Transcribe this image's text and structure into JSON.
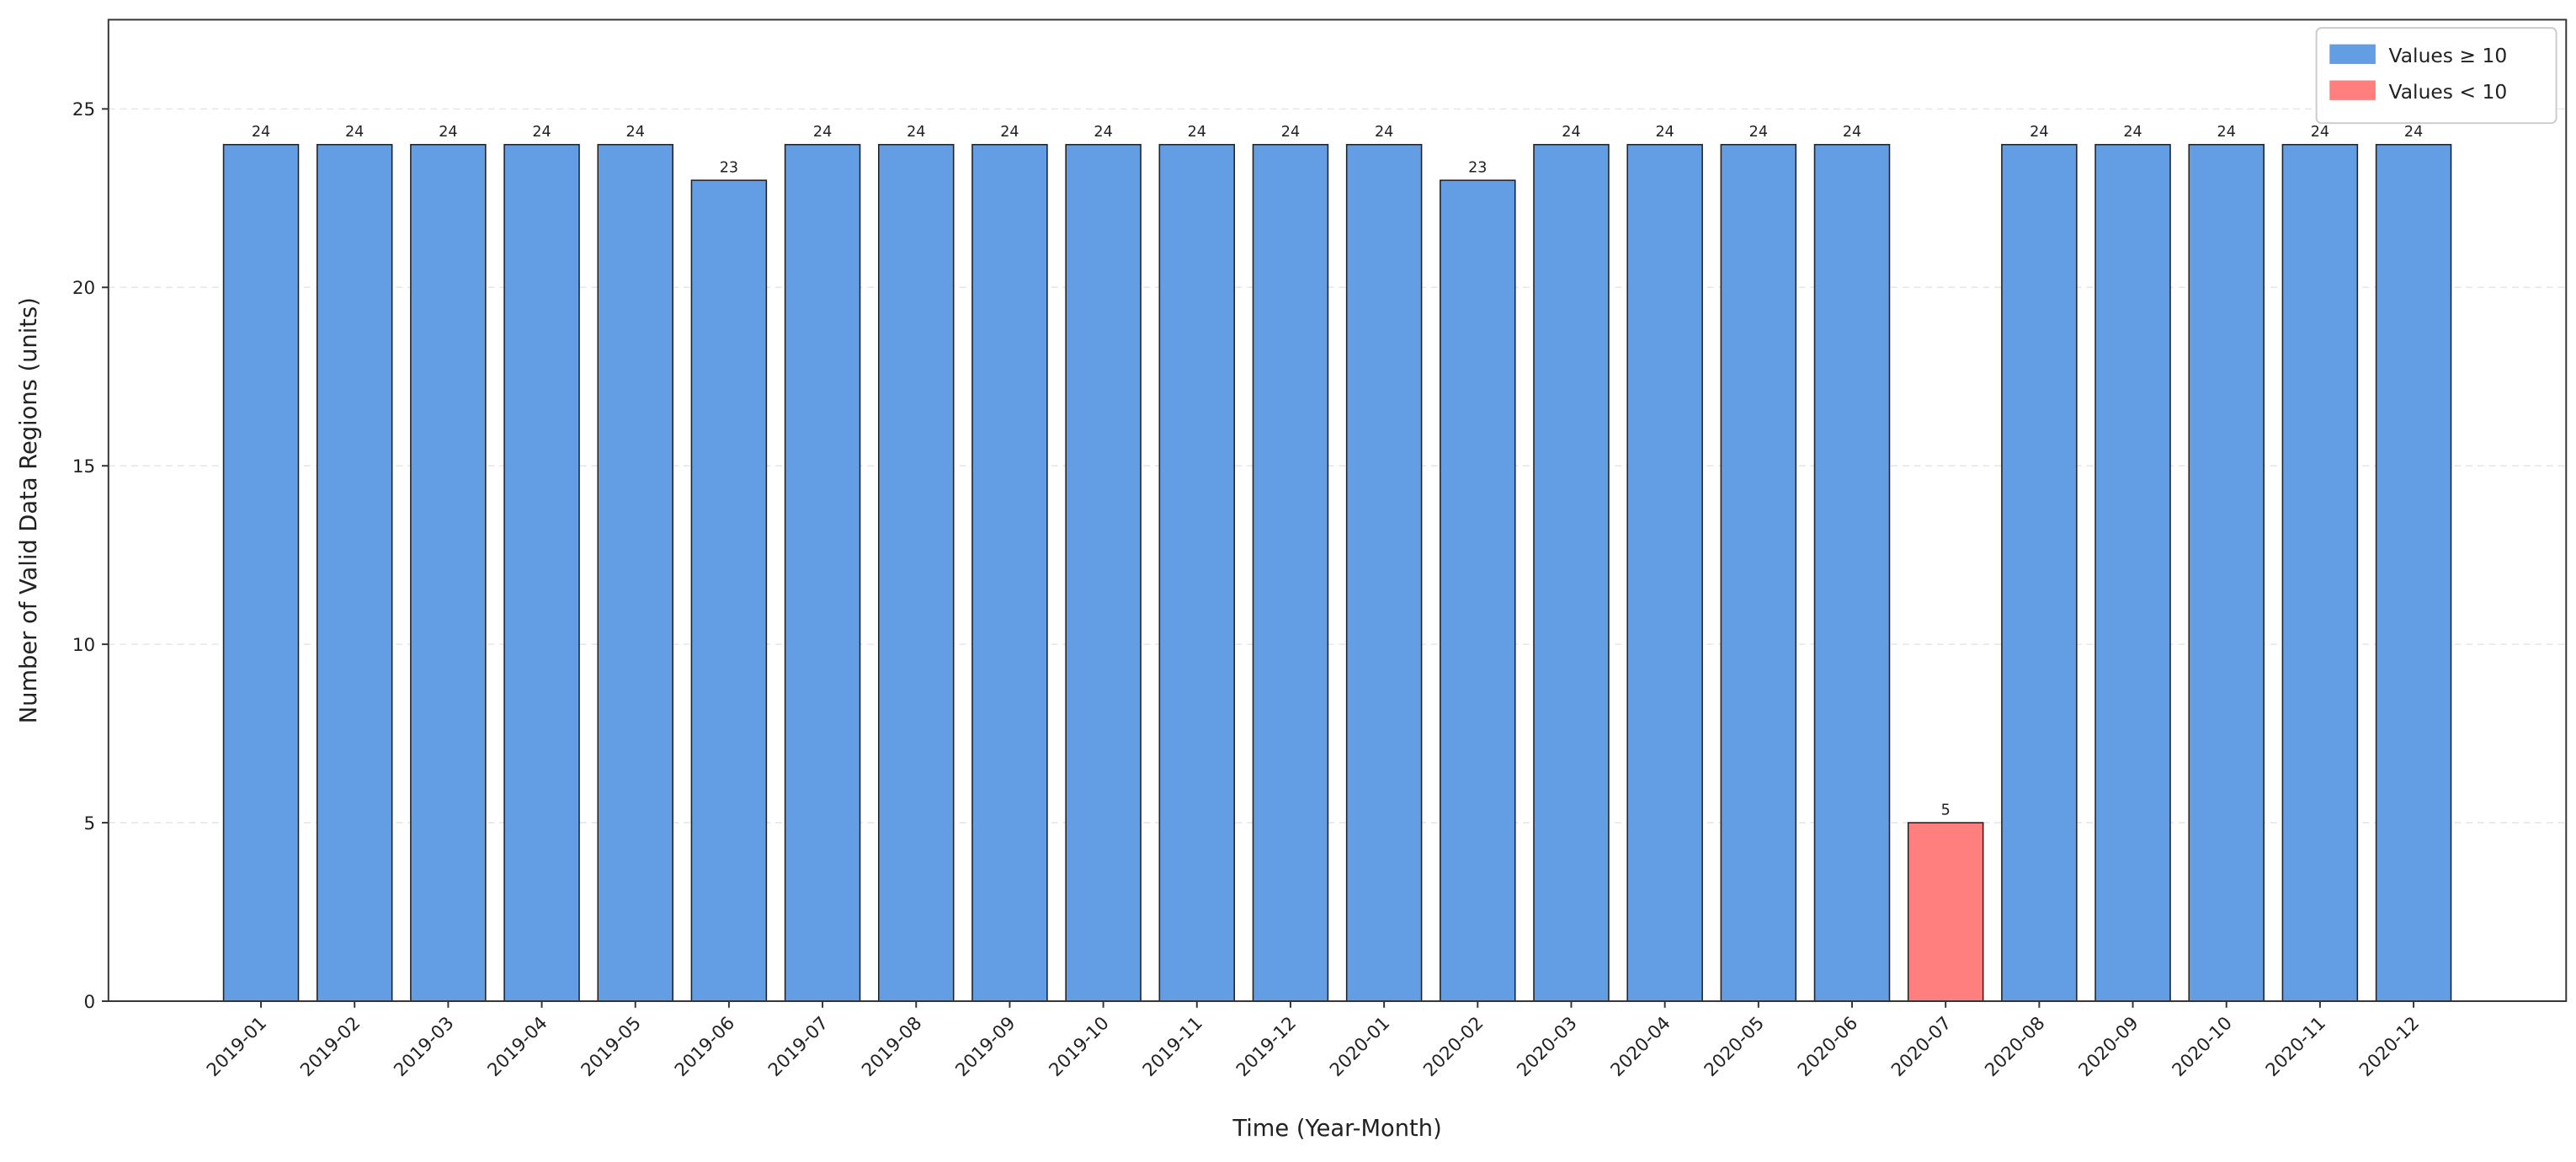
{
  "chart_data": {
    "type": "bar",
    "x_label": "Time (Year-Month)",
    "y_label": "Number of Valid Data Regions (units)",
    "categories": [
      "2019-01",
      "2019-02",
      "2019-03",
      "2019-04",
      "2019-05",
      "2019-06",
      "2019-07",
      "2019-08",
      "2019-09",
      "2019-10",
      "2019-11",
      "2019-12",
      "2020-01",
      "2020-02",
      "2020-03",
      "2020-04",
      "2020-05",
      "2020-06",
      "2020-07",
      "2020-08",
      "2020-09",
      "2020-10",
      "2020-11",
      "2020-12"
    ],
    "series": [
      {
        "name": "Values ≥ 10",
        "color": "#639ee4",
        "values": [
          24,
          24,
          24,
          24,
          24,
          23,
          24,
          24,
          24,
          24,
          24,
          24,
          24,
          23,
          24,
          24,
          24,
          24,
          null,
          24,
          24,
          24,
          24,
          24
        ]
      },
      {
        "name": "Values < 10",
        "color": "#ff7f7f",
        "values": [
          null,
          null,
          null,
          null,
          null,
          null,
          null,
          null,
          null,
          null,
          null,
          null,
          null,
          null,
          null,
          null,
          null,
          null,
          5,
          null,
          null,
          null,
          null,
          null
        ]
      }
    ],
    "ylim": [
      0,
      27.5
    ],
    "yticks": [
      0,
      5,
      10,
      15,
      20,
      25
    ],
    "grid": true,
    "legend": "upper right"
  }
}
